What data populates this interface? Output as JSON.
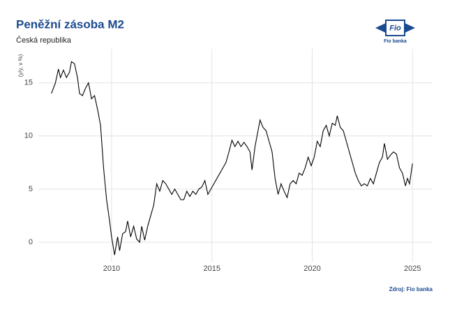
{
  "chart_data": {
    "type": "line",
    "title": "Peněžní zásoba M2",
    "subtitle": "Česká republika",
    "y_label": "(y/y, v %)",
    "source": "Zdroj: Fio banka",
    "logo": {
      "mark": "Fio",
      "name": "Fio banka"
    },
    "x": [
      2007.0,
      2007.2,
      2007.35,
      2007.45,
      2007.6,
      2007.75,
      2007.9,
      2008.0,
      2008.15,
      2008.3,
      2008.4,
      2008.55,
      2008.7,
      2008.85,
      2009.0,
      2009.15,
      2009.3,
      2009.45,
      2009.6,
      2009.75,
      2009.9,
      2010.0,
      2010.15,
      2010.3,
      2010.4,
      2010.55,
      2010.7,
      2010.8,
      2010.95,
      2011.1,
      2011.25,
      2011.4,
      2011.5,
      2011.65,
      2011.8,
      2011.95,
      2012.1,
      2012.25,
      2012.4,
      2012.55,
      2012.7,
      2012.85,
      2013.0,
      2013.15,
      2013.3,
      2013.45,
      2013.6,
      2013.75,
      2013.9,
      2014.05,
      2014.2,
      2014.35,
      2014.5,
      2014.65,
      2014.8,
      2014.95,
      2015.1,
      2015.25,
      2015.4,
      2015.55,
      2015.7,
      2015.85,
      2016.0,
      2016.15,
      2016.3,
      2016.45,
      2016.6,
      2016.75,
      2016.9,
      2017.0,
      2017.15,
      2017.3,
      2017.4,
      2017.55,
      2017.7,
      2017.85,
      2018.0,
      2018.15,
      2018.3,
      2018.45,
      2018.6,
      2018.75,
      2018.9,
      2019.05,
      2019.2,
      2019.35,
      2019.5,
      2019.65,
      2019.8,
      2019.95,
      2020.1,
      2020.25,
      2020.4,
      2020.55,
      2020.7,
      2020.85,
      2021.0,
      2021.15,
      2021.25,
      2021.4,
      2021.55,
      2021.7,
      2021.85,
      2022.0,
      2022.15,
      2022.3,
      2022.45,
      2022.6,
      2022.75,
      2022.9,
      2023.05,
      2023.2,
      2023.35,
      2023.5,
      2023.6,
      2023.75,
      2023.9,
      2024.05,
      2024.2,
      2024.35,
      2024.5,
      2024.65,
      2024.75,
      2024.85,
      2025.0
    ],
    "series": [
      {
        "name": "M2",
        "color": "#000000",
        "values": [
          14.0,
          15.0,
          16.3,
          15.5,
          16.2,
          15.5,
          16.0,
          17.0,
          16.8,
          15.5,
          14.0,
          13.8,
          14.5,
          15.0,
          13.5,
          13.8,
          12.5,
          11.0,
          7.0,
          4.0,
          2.0,
          0.5,
          -1.2,
          0.5,
          -0.8,
          0.8,
          1.0,
          2.0,
          0.5,
          1.5,
          0.3,
          0.0,
          1.5,
          0.2,
          1.5,
          2.5,
          3.5,
          5.5,
          4.8,
          5.8,
          5.5,
          5.0,
          4.5,
          5.0,
          4.5,
          4.0,
          4.0,
          4.8,
          4.3,
          4.8,
          4.5,
          5.0,
          5.2,
          5.8,
          4.5,
          5.0,
          5.5,
          6.0,
          6.5,
          7.0,
          7.5,
          8.5,
          9.6,
          9.0,
          9.5,
          9.0,
          9.4,
          9.0,
          8.5,
          6.8,
          9.0,
          10.5,
          11.5,
          10.8,
          10.5,
          9.5,
          8.5,
          6.0,
          4.5,
          5.5,
          4.8,
          4.2,
          5.5,
          5.8,
          5.5,
          6.5,
          6.3,
          7.0,
          8.0,
          7.2,
          8.0,
          9.5,
          9.0,
          10.5,
          11.0,
          10.0,
          11.2,
          11.0,
          11.9,
          10.8,
          10.5,
          9.5,
          8.5,
          7.5,
          6.5,
          5.8,
          5.3,
          5.5,
          5.3,
          6.0,
          5.5,
          6.5,
          7.5,
          8.0,
          9.3,
          7.8,
          8.2,
          8.5,
          8.3,
          7.0,
          6.5,
          5.3,
          6.0,
          5.5,
          7.4
        ]
      }
    ],
    "xlim": [
      2006.35,
      2026.0
    ],
    "xticks": [
      2010,
      2015,
      2020,
      2025
    ],
    "ylim": [
      -1.84,
      18.2
    ],
    "yticks": [
      0,
      5,
      10,
      15
    ],
    "grid": true
  }
}
